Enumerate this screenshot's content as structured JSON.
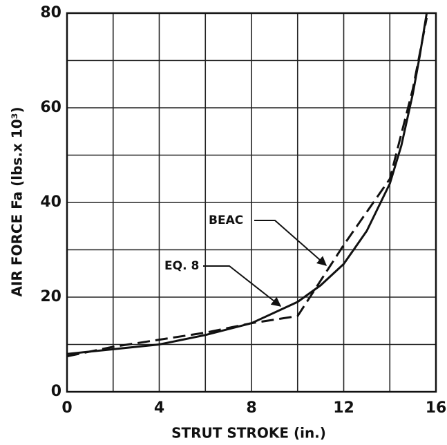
{
  "chart_data": {
    "type": "line",
    "xlabel": "STRUT STROKE (in.)",
    "ylabel": "AIR FORCE Fa  (lbs.x 10³)",
    "xlim": [
      0,
      16
    ],
    "ylim": [
      0,
      80
    ],
    "xticks": [
      0,
      4,
      8,
      12,
      16
    ],
    "yticks": [
      0,
      20,
      40,
      60,
      80
    ],
    "x_grid": [
      0,
      2,
      4,
      6,
      8,
      10,
      12,
      14,
      16
    ],
    "y_grid": [
      0,
      10,
      20,
      30,
      40,
      50,
      60,
      70,
      80
    ],
    "grid": true,
    "series": [
      {
        "name": "EQ. 8",
        "color": "#111111",
        "dash": false,
        "x": [
          0,
          2,
          4,
          6,
          8,
          10,
          11,
          12,
          13,
          14,
          14.5,
          15,
          15.3,
          15.6
        ],
        "values": [
          8,
          9,
          10,
          12,
          14.5,
          19,
          22.5,
          27,
          34,
          44,
          52,
          63,
          71,
          80
        ]
      },
      {
        "name": "BEAC",
        "color": "#111111",
        "dash": true,
        "x": [
          0,
          2,
          4,
          6,
          8,
          10,
          12,
          14,
          15,
          15.6
        ],
        "values": [
          7.5,
          9.5,
          11,
          12.5,
          14.5,
          16,
          31,
          45,
          64,
          79
        ]
      }
    ]
  }
}
